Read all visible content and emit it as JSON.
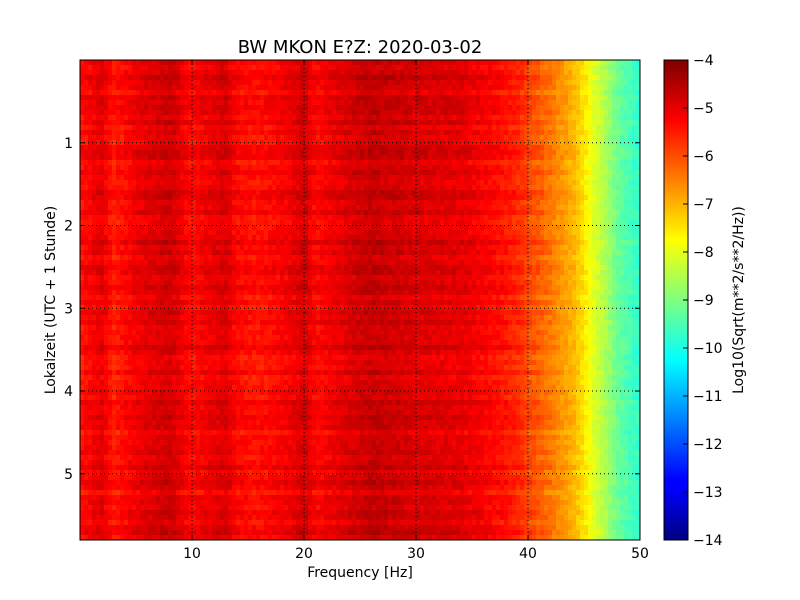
{
  "chart_data": {
    "type": "heatmap",
    "title": "BW MKON E?Z: 2020-03-02",
    "xlabel": "Frequency [Hz]",
    "ylabel": "Lokalzeit (UTC + 1 Stunde)",
    "xlim": [
      0,
      50
    ],
    "ylim": [
      5.8,
      0
    ],
    "x_ticks": [
      10,
      20,
      30,
      40,
      50
    ],
    "y_ticks": [
      1,
      2,
      3,
      4,
      5
    ],
    "grid": true,
    "colormap": "jet",
    "colorbar": {
      "label": "Log10(Sqrt(m**2/s**2/Hz))",
      "range": [
        -14,
        -4
      ],
      "ticks": [
        -4,
        -5,
        -6,
        -7,
        -8,
        -9,
        -10,
        -11,
        -12,
        -13,
        -14
      ]
    },
    "approx_level_by_frequency": {
      "frequency_hz": [
        0,
        2,
        3,
        5,
        8,
        10,
        13,
        14,
        16,
        19,
        20,
        21,
        24,
        26,
        30,
        34,
        37,
        39,
        40,
        42,
        44,
        45,
        46,
        47,
        48,
        50
      ],
      "log10_amplitude": [
        -5.4,
        -5.0,
        -5.5,
        -5.1,
        -4.8,
        -5.3,
        -4.9,
        -5.3,
        -5.4,
        -5.1,
        -4.8,
        -5.3,
        -4.9,
        -4.7,
        -4.9,
        -5.0,
        -5.3,
        -5.6,
        -5.9,
        -6.4,
        -7.0,
        -7.5,
        -8.1,
        -8.6,
        -9.2,
        -9.8
      ]
    },
    "time_range_hours": [
      0,
      5.8
    ]
  }
}
